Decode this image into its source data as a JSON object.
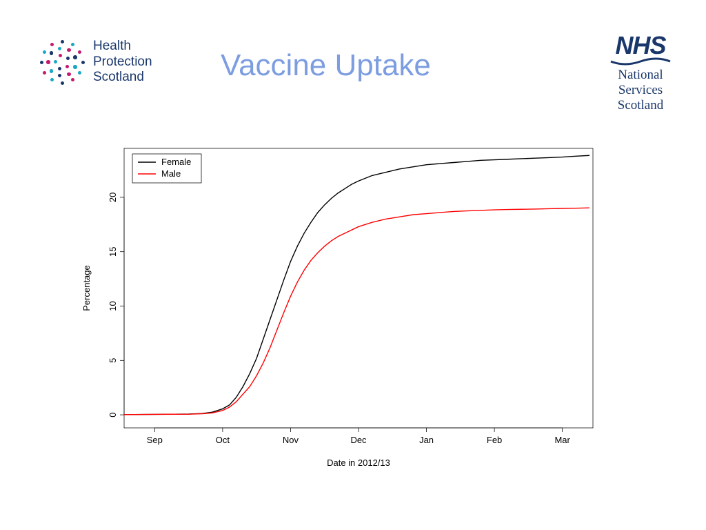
{
  "title": "Vaccine Uptake",
  "left_logo": {
    "line1": "Health",
    "line2": "Protection",
    "line3": "Scotland",
    "text_color": "#1a376b",
    "dot_colors": {
      "blue": "#1a376b",
      "cyan": "#1aa7c6",
      "magenta": "#c31a6f"
    }
  },
  "right_logo": {
    "nhs": "NHS",
    "sub1": "National",
    "sub2": "Services",
    "sub3": "Scotland",
    "color": "#1a376b"
  },
  "chart": {
    "type": "line",
    "xlabel": "Date in 2012/13",
    "ylabel": "Percentage",
    "x_categories": [
      "Sep",
      "Oct",
      "Nov",
      "Dec",
      "Jan",
      "Feb",
      "Mar"
    ],
    "x_index_start": 1,
    "x_index_end": 8,
    "ylim": [
      -1.2,
      24.5
    ],
    "yticks": [
      0,
      5,
      10,
      15,
      20
    ],
    "background_color": "#ffffff",
    "border_color": "#000000",
    "axis_line_width": 0.75,
    "label_fontsize": 13,
    "tick_fontsize": 13,
    "legend": {
      "position": "top-left",
      "border_color": "#000000",
      "items": [
        {
          "label": "Female",
          "color": "#000000"
        },
        {
          "label": "Male",
          "color": "#ff0000"
        }
      ]
    },
    "series": [
      {
        "name": "Female",
        "color": "#000000",
        "line_width": 1.4,
        "x": [
          0.55,
          1.0,
          1.5,
          1.7,
          1.85,
          2.0,
          2.1,
          2.2,
          2.3,
          2.4,
          2.5,
          2.6,
          2.7,
          2.8,
          2.9,
          3.0,
          3.1,
          3.2,
          3.3,
          3.4,
          3.5,
          3.6,
          3.7,
          3.8,
          3.9,
          4.0,
          4.2,
          4.4,
          4.6,
          4.8,
          5.0,
          5.2,
          5.4,
          5.6,
          5.8,
          6.0,
          6.2,
          6.4,
          6.6,
          6.8,
          7.0,
          7.2,
          7.4
        ],
        "y": [
          0.02,
          0.04,
          0.07,
          0.12,
          0.25,
          0.55,
          0.9,
          1.6,
          2.6,
          3.8,
          5.2,
          7.0,
          8.8,
          10.6,
          12.4,
          14.1,
          15.5,
          16.7,
          17.7,
          18.6,
          19.3,
          19.9,
          20.4,
          20.8,
          21.2,
          21.5,
          22.0,
          22.3,
          22.6,
          22.8,
          23.0,
          23.1,
          23.2,
          23.3,
          23.4,
          23.45,
          23.5,
          23.55,
          23.6,
          23.65,
          23.7,
          23.78,
          23.85
        ]
      },
      {
        "name": "Male",
        "color": "#ff0000",
        "line_width": 1.4,
        "x": [
          0.55,
          1.0,
          1.5,
          1.7,
          1.85,
          2.0,
          2.1,
          2.2,
          2.3,
          2.4,
          2.5,
          2.6,
          2.7,
          2.8,
          2.9,
          3.0,
          3.1,
          3.2,
          3.3,
          3.4,
          3.5,
          3.6,
          3.7,
          3.8,
          3.9,
          4.0,
          4.2,
          4.4,
          4.6,
          4.8,
          5.0,
          5.2,
          5.4,
          5.6,
          5.8,
          6.0,
          6.2,
          6.4,
          6.6,
          6.8,
          7.0,
          7.2,
          7.4
        ],
        "y": [
          0.02,
          0.04,
          0.06,
          0.1,
          0.18,
          0.4,
          0.7,
          1.2,
          1.9,
          2.6,
          3.6,
          4.8,
          6.2,
          7.8,
          9.4,
          10.9,
          12.2,
          13.3,
          14.2,
          14.9,
          15.5,
          16.0,
          16.4,
          16.7,
          17.0,
          17.3,
          17.7,
          18.0,
          18.2,
          18.4,
          18.5,
          18.6,
          18.7,
          18.75,
          18.8,
          18.85,
          18.88,
          18.9,
          18.92,
          18.95,
          18.98,
          19.0,
          19.03
        ]
      }
    ]
  }
}
